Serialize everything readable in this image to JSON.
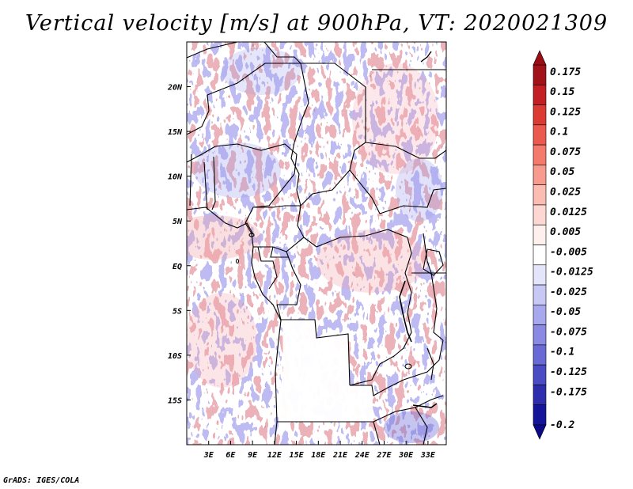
{
  "title": "Vertical velocity [m/s] at 900hPa, VT: 2020021309",
  "credit": "GrADS: IGES/COLA",
  "map": {
    "lon_range": [
      0,
      35.5
    ],
    "lat_range": [
      -20,
      25
    ],
    "x_ticks": [
      {
        "value": 3,
        "label": "3E"
      },
      {
        "value": 6,
        "label": "6E"
      },
      {
        "value": 9,
        "label": "9E"
      },
      {
        "value": 12,
        "label": "12E"
      },
      {
        "value": 15,
        "label": "15E"
      },
      {
        "value": 18,
        "label": "18E"
      },
      {
        "value": 21,
        "label": "21E"
      },
      {
        "value": 24,
        "label": "24E"
      },
      {
        "value": 27,
        "label": "27E"
      },
      {
        "value": 30,
        "label": "30E"
      },
      {
        "value": 33,
        "label": "33E"
      }
    ],
    "y_ticks": [
      {
        "value": 20,
        "label": "20N"
      },
      {
        "value": 15,
        "label": "15N"
      },
      {
        "value": 10,
        "label": "10N"
      },
      {
        "value": 5,
        "label": "5N"
      },
      {
        "value": 0,
        "label": "EQ"
      },
      {
        "value": -5,
        "label": "5S"
      },
      {
        "value": -10,
        "label": "10S"
      },
      {
        "value": -15,
        "label": "15S"
      }
    ],
    "field": "Vertical velocity at 900hPa (m/s)"
  },
  "colorbar": {
    "entries": [
      {
        "label": "0.175",
        "color": "#a11219"
      },
      {
        "label": "0.15",
        "color": "#c31f24"
      },
      {
        "label": "0.125",
        "color": "#dc3b34"
      },
      {
        "label": "0.1",
        "color": "#ec5a4f"
      },
      {
        "label": "0.075",
        "color": "#f47a6e"
      },
      {
        "label": "0.05",
        "color": "#f89a8d"
      },
      {
        "label": "0.025",
        "color": "#fbbcb2"
      },
      {
        "label": "0.0125",
        "color": "#fdd8d2"
      },
      {
        "label": "0.005",
        "color": "#fff0ed"
      },
      {
        "label": "-0.005",
        "color": "#ffffff"
      },
      {
        "label": "-0.0125",
        "color": "#e4e4fb"
      },
      {
        "label": "-0.025",
        "color": "#c8c8f5"
      },
      {
        "label": "-0.05",
        "color": "#a8a8ee"
      },
      {
        "label": "-0.075",
        "color": "#8a8ae4"
      },
      {
        "label": "-0.1",
        "color": "#6a6ad6"
      },
      {
        "label": "-0.125",
        "color": "#4b4bc4"
      },
      {
        "label": "-0.175",
        "color": "#2d2dad"
      },
      {
        "label": "-0.2",
        "color": "#15159a"
      }
    ],
    "top_arrow_color": "#9a0d13",
    "bottom_arrow_color": "#0d0a8a"
  }
}
